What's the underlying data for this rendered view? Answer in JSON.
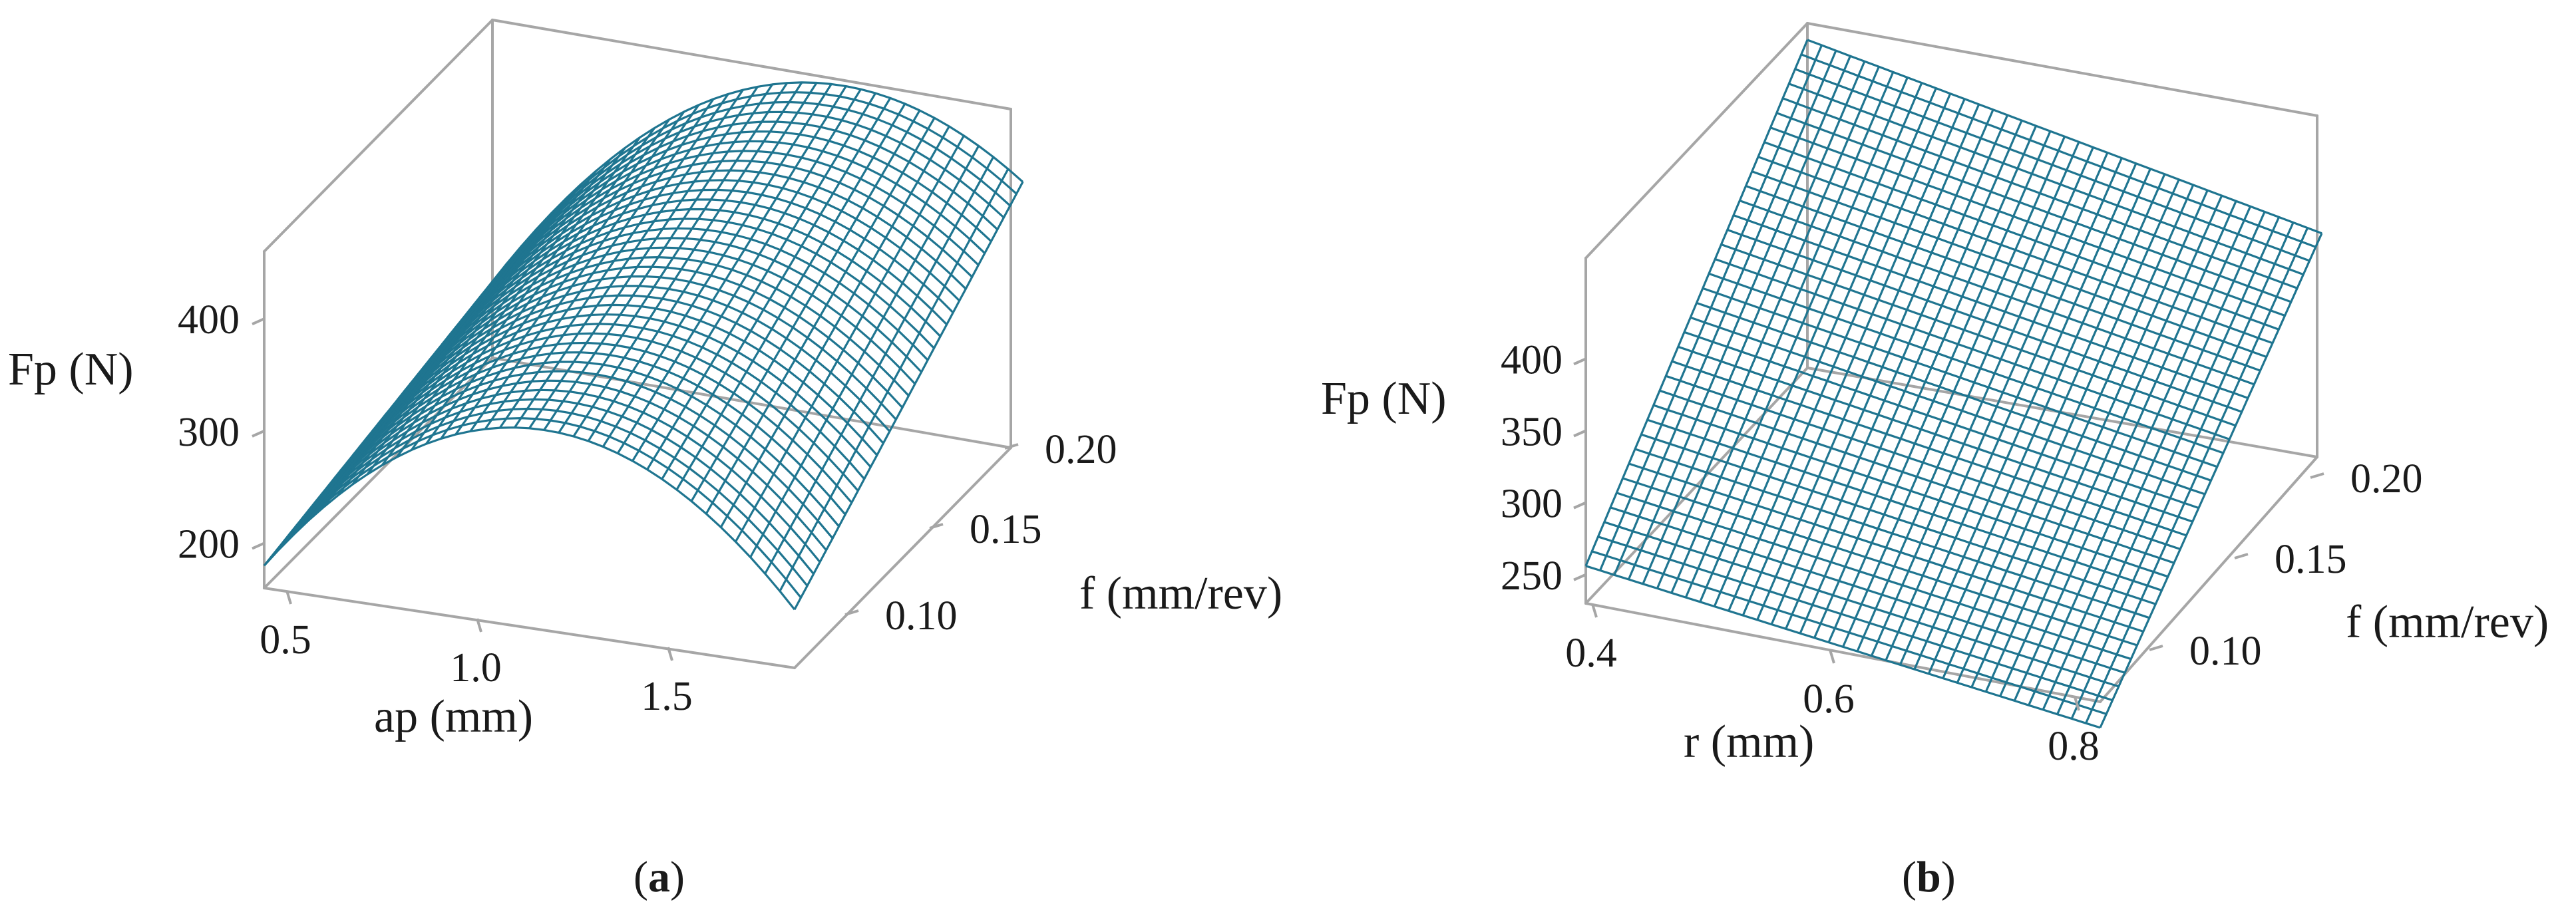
{
  "colors": {
    "mesh": "#1f7590",
    "box": "#a6a6a6"
  },
  "chart_data": [
    {
      "type": "surface",
      "panel_label": "a",
      "zlabel": "Fp (N)",
      "xlabel": "ap (mm)",
      "ylabel": "f (mm/rev)",
      "z_ticks": [
        "200",
        "300",
        "400"
      ],
      "x_ticks": [
        "0.5",
        "1.0",
        "1.5"
      ],
      "y_ticks": [
        "0.10",
        "0.15",
        "0.20"
      ],
      "x_range": [
        0.5,
        1.75
      ],
      "y_range": [
        0.08,
        0.21
      ],
      "z_range": [
        160,
        460
      ],
      "grid_size": 36,
      "corner_values": {
        "x_min_y_min": 180,
        "x_min_y_max": 228,
        "x_max_y_min": 212,
        "x_max_y_max": 388
      },
      "ridge": {
        "x_at_max": 1.2,
        "z_at_max_y_max": 445
      }
    },
    {
      "type": "surface",
      "panel_label": "b",
      "zlabel": "Fp (N)",
      "xlabel": "r (mm)",
      "ylabel": "f (mm/rev)",
      "z_ticks": [
        "250",
        "300",
        "350",
        "400"
      ],
      "x_ticks": [
        "0.4",
        "0.6",
        "0.8"
      ],
      "y_ticks": [
        "0.10",
        "0.15",
        "0.20"
      ],
      "x_range": [
        0.4,
        0.8
      ],
      "y_range": [
        0.08,
        0.21
      ],
      "z_range": [
        230,
        470
      ],
      "grid_size": 36,
      "corner_values": {
        "x_min_y_min": 256,
        "x_min_y_max": 458,
        "x_max_y_min": 212,
        "x_max_y_max": 392
      }
    }
  ]
}
